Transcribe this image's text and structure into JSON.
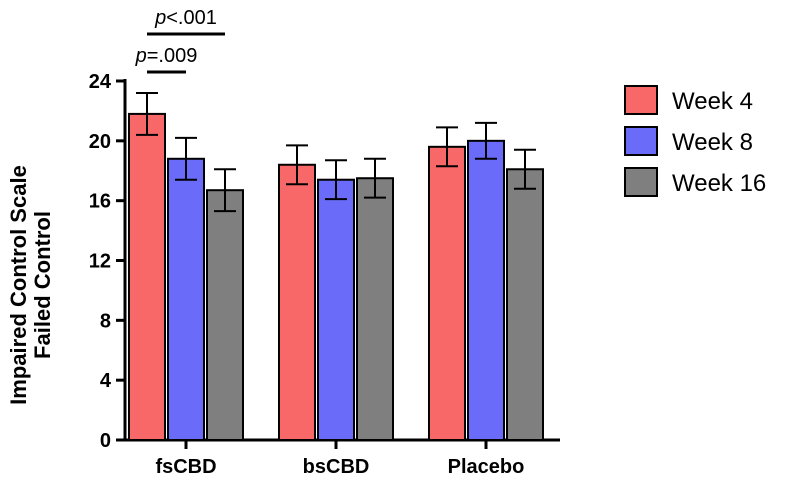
{
  "chart_data": {
    "type": "bar",
    "ylabel_line1": "Impaired Control Scale",
    "ylabel_line2": "Failed Control",
    "xlabel": "",
    "ylim": [
      0,
      24
    ],
    "yticks": [
      0,
      4,
      8,
      12,
      16,
      20,
      24
    ],
    "grid": false,
    "legend_position": "top-right",
    "categories": [
      "fsCBD",
      "bsCBD",
      "Placebo"
    ],
    "series": [
      {
        "name": "Week 4",
        "color": "#F86868",
        "values": [
          21.8,
          18.4,
          19.6
        ],
        "errors": [
          1.4,
          1.3,
          1.3
        ]
      },
      {
        "name": "Week 8",
        "color": "#6B6BFA",
        "values": [
          18.8,
          17.4,
          20.0
        ],
        "errors": [
          1.4,
          1.3,
          1.2
        ]
      },
      {
        "name": "Week 16",
        "color": "#7F7F7F",
        "values": [
          16.7,
          17.5,
          18.1
        ],
        "errors": [
          1.4,
          1.3,
          1.3
        ]
      }
    ],
    "annotations": [
      {
        "p_prefix": "p",
        "p_rest": "=.009",
        "category": "fsCBD",
        "from_series": 0,
        "to_series": 1,
        "level": 1
      },
      {
        "p_prefix": "p",
        "p_rest": "<.001",
        "category": "fsCBD",
        "from_series": 0,
        "to_series": 2,
        "level": 2
      }
    ]
  }
}
